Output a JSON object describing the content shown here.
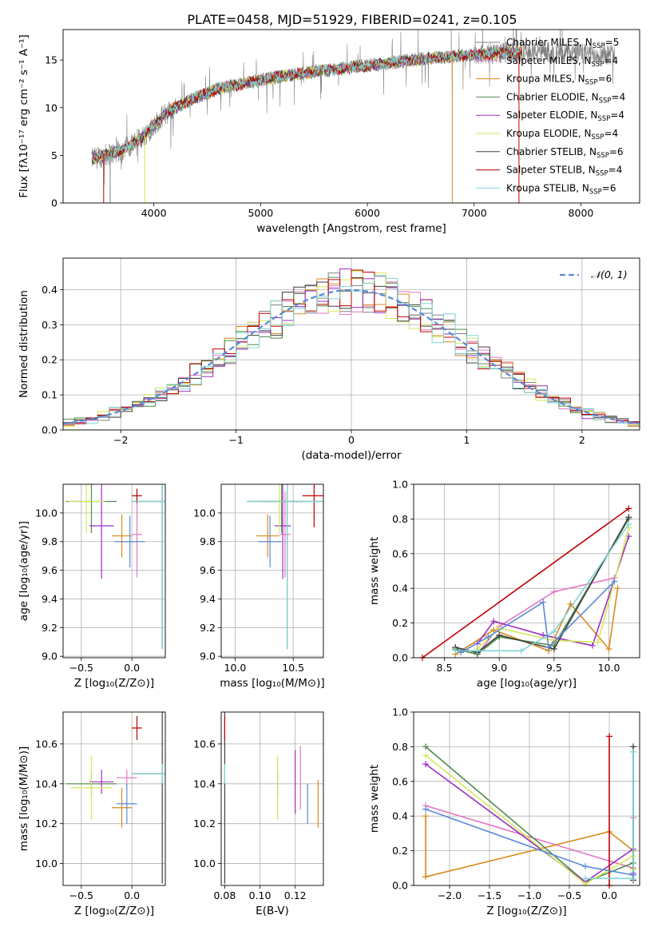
{
  "title": "PLATE=0458, MJD=51929, FIBERID=0241, z=0.105",
  "models": [
    {
      "label": "Chabrier MILES, N",
      "sub": "SSP",
      "suffix": "=5",
      "color": "#808080"
    },
    {
      "label": "Salpeter MILES, N",
      "sub": "SSP",
      "suffix": "=4",
      "color": "#e377c2"
    },
    {
      "label": "Kroupa MILES, N",
      "sub": "SSP",
      "suffix": "=6",
      "color": "#d98a1c"
    },
    {
      "label": "Chabrier ELODIE, N",
      "sub": "SSP",
      "suffix": "=4",
      "color": "#4f8a4f"
    },
    {
      "label": "Salpeter ELODIE, N",
      "sub": "SSP",
      "suffix": "=4",
      "color": "#9b30c0"
    },
    {
      "label": "Kroupa ELODIE, N",
      "sub": "SSP",
      "suffix": "=4",
      "color": "#d4e85a"
    },
    {
      "label": "Chabrier STELIB, N",
      "sub": "SSP",
      "suffix": "=6",
      "color": "#404040"
    },
    {
      "label": "Salpeter STELIB, N",
      "sub": "SSP",
      "suffix": "=4",
      "color": "#c00000"
    },
    {
      "label": "Kroupa STELIB, N",
      "sub": "SSP",
      "suffix": "=6",
      "color": "#7ed6d6"
    }
  ],
  "chart_data": [
    {
      "type": "line",
      "name": "spectrum",
      "xlabel": "wavelength [Angstrom, rest frame]",
      "ylabel": "Flux [fλ10⁻¹⁷ erg cm⁻² s⁻¹ A⁻¹]",
      "xlim": [
        3150,
        8550
      ],
      "ylim": [
        0,
        18.2
      ],
      "xticks": [
        4000,
        5000,
        6000,
        7000,
        8000
      ],
      "yticks": [
        0,
        5,
        10,
        15
      ],
      "continuum": [
        [
          3420,
          4.6
        ],
        [
          3700,
          5.5
        ],
        [
          3900,
          7.0
        ],
        [
          4100,
          9.3
        ],
        [
          4300,
          10.6
        ],
        [
          4600,
          12.0
        ],
        [
          5000,
          12.9
        ],
        [
          5500,
          13.8
        ],
        [
          6000,
          14.4
        ],
        [
          6500,
          15.1
        ],
        [
          7000,
          15.6
        ],
        [
          7500,
          15.9
        ],
        [
          8000,
          15.7
        ],
        [
          8320,
          15.6
        ]
      ],
      "model_range": [
        3420,
        7450
      ]
    },
    {
      "type": "line",
      "name": "residual-histogram",
      "xlabel": "(data-model)/error",
      "ylabel": "Normed distribution",
      "xlim": [
        -2.5,
        2.5
      ],
      "ylim": [
        0,
        0.49
      ],
      "xticks": [
        -2,
        -1,
        0,
        1,
        2
      ],
      "yticks": [
        0,
        0.1,
        0.2,
        0.3,
        0.4
      ],
      "reference_label": "𝒩(0, 1)",
      "reference_color": "#5a8ad6",
      "bin_width": 0.1
    },
    {
      "type": "scatter",
      "name": "age-vs-metallicity",
      "xlabel": "Z [log₁₀(Z/Z⊙)]",
      "ylabel": "age  [log₁₀(age/yr)]",
      "xlim": [
        -0.68,
        0.33
      ],
      "ylim": [
        8.99,
        10.2
      ],
      "xticks": [
        -0.5,
        0.0
      ],
      "yticks": [
        9.0,
        9.2,
        9.4,
        9.6,
        9.8,
        10.0
      ],
      "points": [
        {
          "x": 0.05,
          "y": 9.85,
          "xerr": 0.05,
          "yerr": 0.3,
          "color": "#e377c2"
        },
        {
          "x": -0.1,
          "y": 9.84,
          "xerr": 0.1,
          "yerr": 0.15,
          "color": "#d98a1c"
        },
        {
          "x": -0.4,
          "y": 10.08,
          "xerr": 0.25,
          "yerr": 0.22,
          "color": "#4f8a4f"
        },
        {
          "x": -0.3,
          "y": 9.91,
          "xerr": 0.12,
          "yerr": 0.37,
          "color": "#9b30c0"
        },
        {
          "x": -0.45,
          "y": 10.08,
          "xerr": 0.18,
          "yerr": 0.22,
          "color": "#d4e85a"
        },
        {
          "x": 0.3,
          "y": 10.08,
          "xerr": 0.3,
          "yerr": 1.03,
          "color": "#404040"
        },
        {
          "x": 0.05,
          "y": 10.12,
          "xerr": 0.05,
          "yerr": 0.05,
          "color": "#c00000"
        },
        {
          "x": 0.3,
          "y": 10.08,
          "xerr": 0.3,
          "yerr": 1.03,
          "color": "#7ed6d6"
        },
        {
          "x": -0.02,
          "y": 9.8,
          "xerr": 0.15,
          "yerr": 0.18,
          "color": "#5a8ad6"
        }
      ]
    },
    {
      "type": "scatter",
      "name": "age-vs-mass",
      "xlabel": "mass [log₁₀(M/M⊙)]",
      "ylabel": "",
      "xlim": [
        9.88,
        10.76
      ],
      "ylim": [
        8.99,
        10.2
      ],
      "xticks": [
        10.0,
        10.5
      ],
      "yticks": [
        9.0,
        9.2,
        9.4,
        9.6,
        9.8,
        10.0
      ],
      "points": [
        {
          "x": 10.43,
          "y": 9.85,
          "xerr": 0.05,
          "yerr": 0.3,
          "color": "#e377c2"
        },
        {
          "x": 10.28,
          "y": 9.84,
          "xerr": 0.1,
          "yerr": 0.15,
          "color": "#d98a1c"
        },
        {
          "x": 10.4,
          "y": 10.08,
          "xerr": 0.18,
          "yerr": 0.22,
          "color": "#4f8a4f"
        },
        {
          "x": 10.41,
          "y": 9.91,
          "xerr": 0.07,
          "yerr": 0.37,
          "color": "#9b30c0"
        },
        {
          "x": 10.38,
          "y": 10.08,
          "xerr": 0.07,
          "yerr": 0.22,
          "color": "#d4e85a"
        },
        {
          "x": 10.45,
          "y": 10.08,
          "xerr": 0.35,
          "yerr": 1.03,
          "color": "#404040"
        },
        {
          "x": 10.68,
          "y": 10.12,
          "xerr": 0.1,
          "yerr": 0.22,
          "color": "#c00000"
        },
        {
          "x": 10.45,
          "y": 10.08,
          "xerr": 0.35,
          "yerr": 1.03,
          "color": "#7ed6d6"
        },
        {
          "x": 10.3,
          "y": 9.8,
          "xerr": 0.1,
          "yerr": 0.18,
          "color": "#5a8ad6"
        }
      ]
    },
    {
      "type": "line",
      "name": "mass-weight-vs-age",
      "xlabel": "age  [log₁₀(age/yr)]",
      "ylabel": "mass weight",
      "xlim": [
        8.22,
        10.28
      ],
      "ylim": [
        0,
        1
      ],
      "xticks": [
        8.5,
        9.0,
        9.5,
        10.0
      ],
      "yticks": [
        0,
        0.2,
        0.4,
        0.6,
        0.8,
        1.0
      ],
      "series": [
        {
          "color": "#e377c2",
          "x": [
            8.8,
            9.0,
            9.5,
            10.05
          ],
          "y": [
            0.02,
            0.18,
            0.38,
            0.46
          ]
        },
        {
          "color": "#d98a1c",
          "x": [
            8.6,
            8.95,
            9.45,
            9.65,
            10.0,
            10.08
          ],
          "y": [
            0.02,
            0.16,
            0.04,
            0.31,
            0.05,
            0.4
          ]
        },
        {
          "color": "#4f8a4f",
          "x": [
            8.6,
            8.8,
            9.0,
            9.5,
            10.18
          ],
          "y": [
            0.05,
            0.02,
            0.12,
            0.07,
            0.8
          ]
        },
        {
          "color": "#9b30c0",
          "x": [
            8.8,
            8.95,
            9.4,
            9.85,
            10.18
          ],
          "y": [
            0.08,
            0.21,
            0.13,
            0.07,
            0.7
          ]
        },
        {
          "color": "#d4e85a",
          "x": [
            8.8,
            9.0,
            9.5,
            9.9,
            10.18
          ],
          "y": [
            0.05,
            0.17,
            0.1,
            0.09,
            0.75
          ]
        },
        {
          "color": "#404040",
          "x": [
            8.6,
            8.8,
            9.0,
            9.5,
            10.18
          ],
          "y": [
            0.06,
            0.03,
            0.13,
            0.05,
            0.81
          ]
        },
        {
          "color": "#c00000",
          "x": [
            8.3,
            10.18
          ],
          "y": [
            0.0,
            0.86
          ]
        },
        {
          "color": "#7ed6d6",
          "x": [
            8.6,
            8.8,
            9.2,
            9.5,
            10.18
          ],
          "y": [
            0.04,
            0.04,
            0.04,
            0.15,
            0.77
          ]
        },
        {
          "color": "#5a8ad6",
          "x": [
            8.65,
            8.9,
            9.4,
            9.45,
            10.05
          ],
          "y": [
            0.03,
            0.12,
            0.32,
            0.06,
            0.44
          ]
        }
      ]
    },
    {
      "type": "scatter",
      "name": "mass-vs-metallicity",
      "xlabel": "Z [log₁₀(Z/Z⊙)]",
      "ylabel": "mass [log₁₀(M/M⊙)]",
      "xlim": [
        -0.68,
        0.33
      ],
      "ylim": [
        9.89,
        10.76
      ],
      "xticks": [
        -0.5,
        0.0
      ],
      "yticks": [
        10.0,
        10.2,
        10.4,
        10.6
      ],
      "points": [
        {
          "x": -0.05,
          "y": 10.43,
          "xerr": 0.1,
          "yerr": 0.04,
          "color": "#e377c2"
        },
        {
          "x": -0.1,
          "y": 10.28,
          "xerr": 0.1,
          "yerr": 0.1,
          "color": "#d98a1c"
        },
        {
          "x": -0.4,
          "y": 10.4,
          "xerr": 0.25,
          "yerr": 0.06,
          "color": "#4f8a4f"
        },
        {
          "x": -0.3,
          "y": 10.41,
          "xerr": 0.12,
          "yerr": 0.06,
          "color": "#9b30c0"
        },
        {
          "x": -0.4,
          "y": 10.38,
          "xerr": 0.2,
          "yerr": 0.16,
          "color": "#d4e85a"
        },
        {
          "x": 0.3,
          "y": 10.45,
          "xerr": 0.3,
          "yerr": 0.55,
          "color": "#404040"
        },
        {
          "x": 0.05,
          "y": 10.68,
          "xerr": 0.05,
          "yerr": 0.06,
          "color": "#c00000"
        },
        {
          "x": 0.3,
          "y": 10.45,
          "xerr": 0.3,
          "yerr": 0.05,
          "color": "#7ed6d6"
        },
        {
          "x": -0.05,
          "y": 10.3,
          "xerr": 0.1,
          "yerr": 0.1,
          "color": "#5a8ad6"
        }
      ]
    },
    {
      "type": "scatter",
      "name": "mass-vs-ebv",
      "xlabel": "E(B-V)",
      "ylabel": "",
      "xlim": [
        0.078,
        0.136
      ],
      "ylim": [
        9.89,
        10.76
      ],
      "xticks": [
        0.08,
        0.1,
        0.12
      ],
      "yticks": [
        10.0,
        10.2,
        10.4,
        10.6
      ],
      "points": [
        {
          "x": 0.08,
          "y": 10.45,
          "yerr": 0.55,
          "color": "#404040"
        },
        {
          "x": 0.08,
          "y": 10.68,
          "yerr": 0.06,
          "color": "#c00000"
        },
        {
          "x": 0.08,
          "y": 10.45,
          "yerr": 0.05,
          "color": "#7ed6d6"
        },
        {
          "x": 0.11,
          "y": 10.4,
          "yerr": 0.06,
          "color": "#4f8a4f"
        },
        {
          "x": 0.11,
          "y": 10.38,
          "yerr": 0.16,
          "color": "#d4e85a"
        },
        {
          "x": 0.12,
          "y": 10.41,
          "yerr": 0.16,
          "color": "#9b30c0"
        },
        {
          "x": 0.123,
          "y": 10.43,
          "yerr": 0.16,
          "color": "#e377c2"
        },
        {
          "x": 0.127,
          "y": 10.3,
          "yerr": 0.1,
          "color": "#5a8ad6"
        },
        {
          "x": 0.133,
          "y": 10.3,
          "yerr": 0.12,
          "color": "#d98a1c"
        }
      ]
    },
    {
      "type": "line",
      "name": "mass-weight-vs-metallicity",
      "xlabel": "Z [log₁₀(Z/Z⊙)]",
      "ylabel": "mass weight",
      "xlim": [
        -2.45,
        0.38
      ],
      "ylim": [
        0,
        1
      ],
      "xticks": [
        -2.0,
        -1.5,
        -1.0,
        -0.5,
        0.0
      ],
      "yticks": [
        0,
        0.2,
        0.4,
        0.6,
        0.8,
        1.0
      ],
      "series": [
        {
          "color": "#e377c2",
          "x": [
            -2.3,
            0.3,
            0.3
          ],
          "y": [
            0.46,
            0.1,
            0.39
          ]
        },
        {
          "color": "#d98a1c",
          "x": [
            -2.3,
            -2.3,
            0.0,
            0.3,
            0.3
          ],
          "y": [
            0.4,
            0.05,
            0.31,
            0.2,
            0.1
          ]
        },
        {
          "color": "#4f8a4f",
          "x": [
            -2.3,
            -0.3,
            0.3
          ],
          "y": [
            0.8,
            0.02,
            0.13
          ]
        },
        {
          "color": "#9b30c0",
          "x": [
            -2.3,
            -0.3,
            0.3,
            0.3
          ],
          "y": [
            0.7,
            0.02,
            0.21,
            0.07
          ]
        },
        {
          "color": "#d4e85a",
          "x": [
            -2.3,
            -0.3,
            0.3,
            0.3
          ],
          "y": [
            0.75,
            0.01,
            0.17,
            0.09
          ]
        },
        {
          "color": "#404040",
          "x": [
            0.3,
            0.3
          ],
          "y": [
            0.8,
            0.03
          ]
        },
        {
          "color": "#c00000",
          "x": [
            0.0,
            0.0
          ],
          "y": [
            0.86,
            0.0
          ]
        },
        {
          "color": "#7ed6d6",
          "x": [
            -0.3,
            0.3,
            0.3
          ],
          "y": [
            0.04,
            0.04,
            0.77
          ]
        },
        {
          "color": "#5a8ad6",
          "x": [
            -2.3,
            -0.3,
            0.3
          ],
          "y": [
            0.44,
            0.11,
            0.06
          ]
        }
      ]
    }
  ]
}
